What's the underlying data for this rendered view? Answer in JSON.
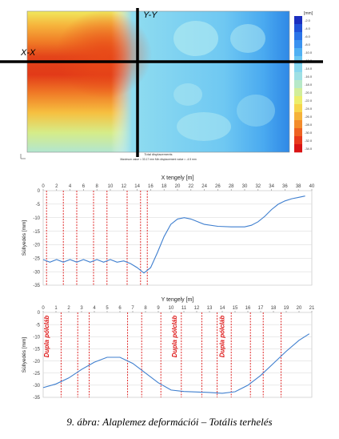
{
  "contour": {
    "section_xx": "X-X",
    "section_yy": "Y-Y",
    "footer_line1": "Total displacements",
    "footer_line2": "Maximum value = 33.17 mm  Min displacement value = -4.5 mm",
    "legend_unit": "[mm]",
    "legend_values": [
      "-2.0",
      "-4.0",
      "-6.0",
      "-8.0",
      "-10.0",
      "-12.0",
      "-14.0",
      "-16.0",
      "-18.0",
      "-20.0",
      "-22.0",
      "-24.0",
      "-26.0",
      "-28.0",
      "-30.0",
      "-32.0",
      "-34.0"
    ],
    "legend_colors": [
      "#1c2fbf",
      "#2052d8",
      "#2b74e8",
      "#3a92f0",
      "#4fb0f3",
      "#6ac6f2",
      "#87d7ee",
      "#9fe0e4",
      "#b7e9c8",
      "#d2ee9a",
      "#ecee6c",
      "#f6d64c",
      "#f5b23a",
      "#f38c2c",
      "#ee6222",
      "#e8391b",
      "#d91414"
    ],
    "icon": "axis-icon"
  },
  "chart_data": [
    {
      "type": "line",
      "title": "X tengely [m]",
      "xlabel": "",
      "ylabel": "Süllyedés [mm]",
      "xlim": [
        0,
        40
      ],
      "ylim": [
        -35,
        0
      ],
      "xticks": [
        0,
        2,
        4,
        6,
        8,
        10,
        12,
        14,
        16,
        18,
        20,
        22,
        24,
        26,
        28,
        30,
        32,
        34,
        36,
        38,
        40
      ],
      "yticks": [
        0,
        -5,
        -10,
        -15,
        -20,
        -25,
        -30,
        -35
      ],
      "vlines": [
        0.5,
        3.0,
        5.0,
        7.5,
        9.5,
        12.5,
        14.5,
        15.5
      ],
      "x": [
        0,
        1,
        2,
        3,
        4,
        5,
        6,
        7,
        8,
        9,
        10,
        11,
        12,
        13,
        14,
        15,
        16,
        17,
        18,
        19,
        20,
        21,
        22,
        23,
        24,
        26,
        28,
        30,
        31,
        32,
        33,
        34,
        35,
        36,
        37,
        38,
        39
      ],
      "y": [
        -25.5,
        -26.5,
        -25.5,
        -26.5,
        -25.5,
        -26.5,
        -25.5,
        -26.5,
        -25.5,
        -26.5,
        -25.5,
        -26.5,
        -26,
        -27,
        -28.5,
        -30.5,
        -28.5,
        -23,
        -17,
        -12.5,
        -10.5,
        -10,
        -10.5,
        -11.5,
        -12.5,
        -13.2,
        -13.4,
        -13.4,
        -12.8,
        -11.5,
        -9.5,
        -7,
        -5,
        -3.8,
        -3,
        -2.5,
        -2
      ]
    },
    {
      "type": "line",
      "title": "Y tengely [m]",
      "xlabel": "",
      "ylabel": "Süllyedés [mm]",
      "xlim": [
        0,
        21
      ],
      "ylim": [
        -35,
        0
      ],
      "xticks": [
        0,
        1,
        2,
        3,
        4,
        5,
        6,
        7,
        8,
        9,
        10,
        11,
        12,
        13,
        14,
        15,
        16,
        17,
        18,
        19,
        20,
        21
      ],
      "yticks": [
        0,
        -5,
        -10,
        -15,
        -20,
        -25,
        -30,
        -35
      ],
      "vlines": [
        1.4,
        2.7,
        3.6,
        6.6,
        7.7,
        9.2,
        10.8,
        12.4,
        13.6,
        14.7,
        16.2,
        17.2,
        18.6
      ],
      "annotations": [
        "Dupla pólcláb",
        "Dupla pólcláb",
        "Dupla pólcláb"
      ],
      "x": [
        0,
        1,
        2,
        3,
        4,
        5,
        6,
        7,
        8,
        9,
        10,
        11,
        12,
        13,
        14,
        15,
        16,
        17,
        18,
        19,
        20,
        20.8
      ],
      "y": [
        -31,
        -29.5,
        -27,
        -23.5,
        -20.5,
        -18.5,
        -18.5,
        -21,
        -25,
        -29,
        -32,
        -32.6,
        -32.8,
        -33,
        -33.3,
        -32.7,
        -30,
        -26,
        -21,
        -16,
        -11.5,
        -8.8
      ]
    }
  ],
  "caption": "9. ábra: Alaplemez deformációi – Totális terhelés"
}
